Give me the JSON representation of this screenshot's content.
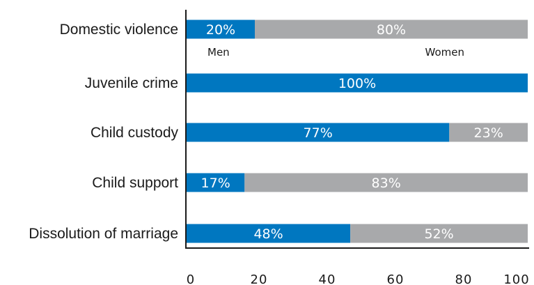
{
  "chart_data": {
    "type": "bar",
    "orientation": "horizontal",
    "stacked": true,
    "categories": [
      "Domestic violence",
      "Juvenile crime",
      "Child custody",
      "Child support",
      "Dissolution of marriage"
    ],
    "series": [
      {
        "name": "Men",
        "values": [
          20,
          100,
          77,
          17,
          48
        ],
        "labels": [
          "20%",
          "100%",
          "77%",
          "17%",
          "48%"
        ],
        "color": "#0077c0"
      },
      {
        "name": "Women",
        "values": [
          80,
          0,
          23,
          83,
          52
        ],
        "labels": [
          "80%",
          "",
          "23%",
          "83%",
          "52%"
        ],
        "color": "#a8a9ab"
      }
    ],
    "xlim": [
      0,
      100
    ],
    "xticks": [
      "0",
      "20",
      "40",
      "60",
      "80",
      "100"
    ],
    "title": "",
    "xlabel": "",
    "ylabel": "",
    "grid": false,
    "legend_placement": "inline, below first bar"
  }
}
